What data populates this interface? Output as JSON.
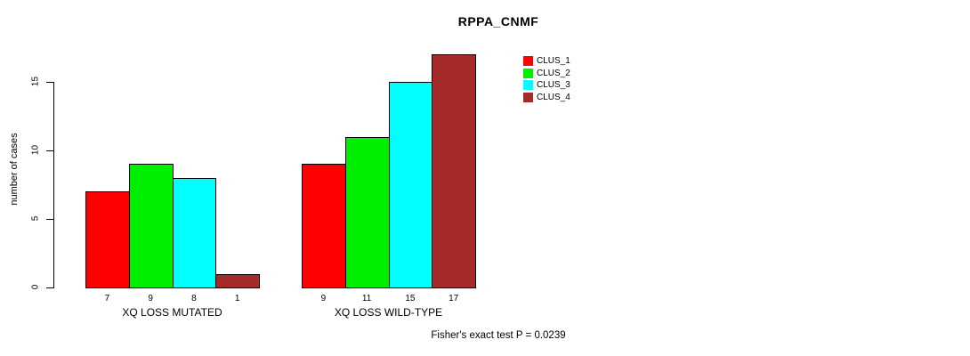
{
  "chart_data": {
    "type": "bar",
    "title": "RPPA_CNMF",
    "ylabel": "number of cases",
    "xlabel": "",
    "yticks": [
      0,
      5,
      10,
      15
    ],
    "ylim": [
      0,
      17
    ],
    "grid": false,
    "legend_position": "top-right",
    "categories": [
      "XQ LOSS MUTATED",
      "XQ LOSS WILD-TYPE"
    ],
    "series": [
      {
        "name": "CLUS_1",
        "color": "#ff0000",
        "values": [
          7,
          9
        ]
      },
      {
        "name": "CLUS_2",
        "color": "#00ee00",
        "values": [
          9,
          11
        ]
      },
      {
        "name": "CLUS_3",
        "color": "#00ffff",
        "values": [
          8,
          15
        ]
      },
      {
        "name": "CLUS_4",
        "color": "#a52a2a",
        "values": [
          1,
          17
        ]
      }
    ],
    "groups": [
      {
        "label": "XQ LOSS MUTATED",
        "values": [
          7,
          9,
          8,
          1
        ]
      },
      {
        "label": "XQ LOSS WILD-TYPE",
        "values": [
          9,
          11,
          15,
          17
        ]
      }
    ],
    "bar_value_labels": [
      [
        7,
        9,
        8,
        1
      ],
      [
        9,
        11,
        15,
        17
      ]
    ],
    "footnote": "Fisher's exact test P = 0.0239",
    "colors": {
      "background": "#ffffff",
      "axis": "#000000",
      "bar_border": "#000000",
      "text": "#000000"
    }
  }
}
